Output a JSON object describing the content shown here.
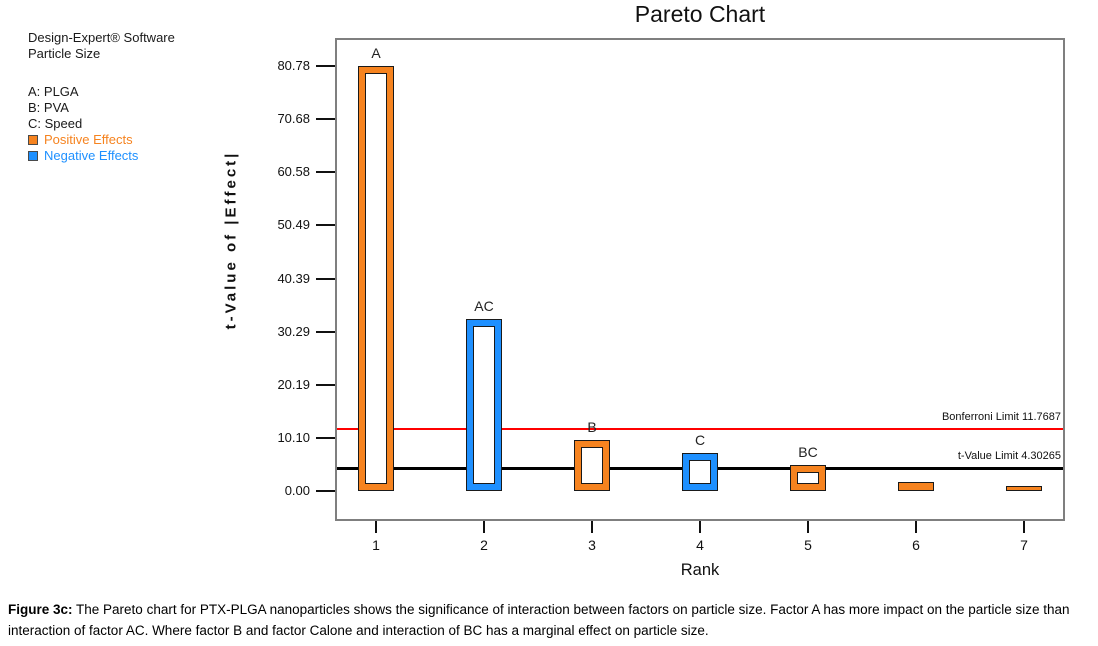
{
  "side_panel": {
    "software": "Design-Expert® Software",
    "response": "Particle Size",
    "factors": [
      "A: PLGA",
      "B: PVA",
      "C: Speed"
    ],
    "positive_label": "Positive Effects",
    "negative_label": "Negative Effects"
  },
  "chart_data": {
    "type": "bar",
    "title": "Pareto Chart",
    "xlabel": "Rank",
    "ylabel": "t-Value of |Effect|",
    "categories": [
      "1",
      "2",
      "3",
      "4",
      "5",
      "6",
      "7"
    ],
    "bars": [
      {
        "rank": 1,
        "label": "A",
        "value": 80.78,
        "effect": "positive"
      },
      {
        "rank": 2,
        "label": "AC",
        "value": 32.6,
        "effect": "negative"
      },
      {
        "rank": 3,
        "label": "B",
        "value": 9.7,
        "effect": "positive"
      },
      {
        "rank": 4,
        "label": "C",
        "value": 7.2,
        "effect": "negative"
      },
      {
        "rank": 5,
        "label": "BC",
        "value": 4.9,
        "effect": "positive"
      },
      {
        "rank": 6,
        "label": "",
        "value": 1.7,
        "effect": "positive"
      },
      {
        "rank": 7,
        "label": "",
        "value": 1.0,
        "effect": "positive"
      }
    ],
    "yticks": [
      "0.00",
      "10.10",
      "20.19",
      "30.29",
      "40.39",
      "50.49",
      "60.58",
      "70.68",
      "80.78"
    ],
    "ylim": [
      0,
      80.78
    ],
    "grid": false,
    "reference_lines": [
      {
        "label": "Bonferroni Limit 11.7687",
        "value": 11.7687,
        "color": "#ff0000",
        "thickness": 2
      },
      {
        "label": "t-Value Limit 4.30265",
        "value": 4.30265,
        "color": "#000000",
        "thickness": 3
      }
    ],
    "colors": {
      "positive": "#F6831F",
      "negative": "#1E90FF"
    }
  },
  "caption": {
    "label": "Figure 3c:",
    "text": "The Pareto chart for PTX-PLGA nanoparticles shows the significance of interaction between factors on particle size. Factor A has more impact on the particle size than interaction of factor AC. Where factor B and factor Calone and interaction of BC has a marginal effect on particle size."
  }
}
